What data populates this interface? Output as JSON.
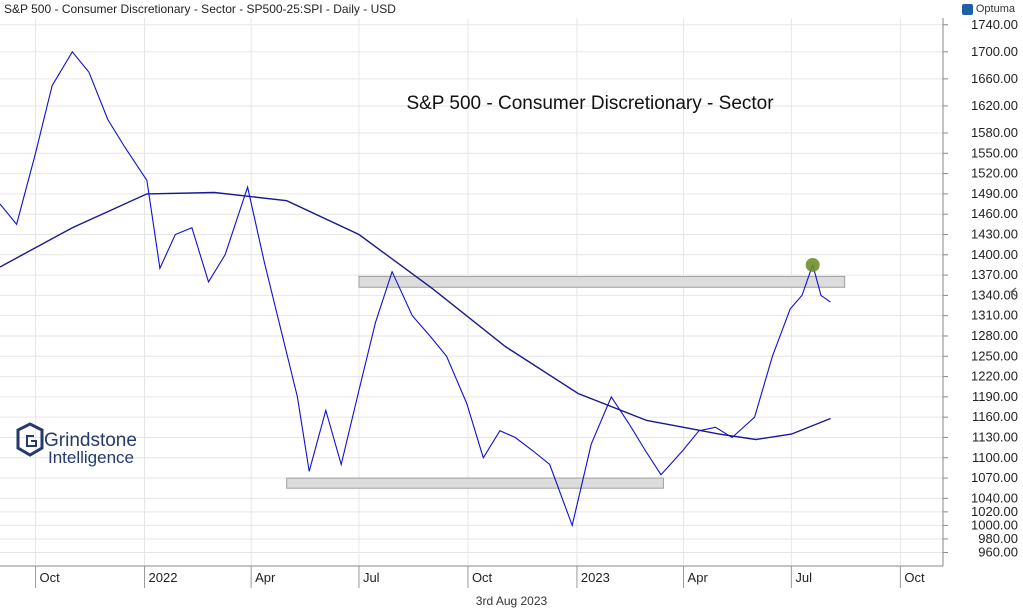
{
  "header": {
    "title": "S&P 500 - Consumer Discretionary - Sector - SP500-25:SPI - Daily - USD",
    "brand": "Optuma"
  },
  "footer": {
    "date": "3rd Aug 2023"
  },
  "watermark": {
    "line1": "Grindstone",
    "line2": "Intelligence"
  },
  "colors": {
    "price": "#1010d0",
    "ma": "#1a1a8c",
    "band_fill": "#dcdcdc",
    "band_stroke": "#a0a0a0",
    "marker": "#6f8f2a",
    "grid": "#e6e6e6"
  },
  "chart_data": {
    "type": "line",
    "title": "S&P 500 - Consumer Discretionary - Sector",
    "xlabel": "",
    "ylabel": "",
    "grid": true,
    "ylim": [
      940,
      1750
    ],
    "x_ticks": [
      "Oct",
      "2022",
      "Apr",
      "Jul",
      "Oct",
      "2023",
      "Apr",
      "Jul",
      "Oct"
    ],
    "y_ticks": [
      1740,
      1700,
      1660,
      1620,
      1580,
      1550,
      1520,
      1490,
      1460,
      1430,
      1400,
      1370,
      1340,
      1310,
      1280,
      1250,
      1220,
      1190,
      1160,
      1130,
      1100,
      1070,
      1040,
      1020,
      1000,
      980,
      960
    ],
    "x_domain": [
      "2021-09-01",
      "2023-11-06"
    ],
    "series": [
      {
        "type": "price",
        "x": [
          "2021-09-01",
          "2021-09-15",
          "2021-10-01",
          "2021-10-15",
          "2021-11-01",
          "2021-11-15",
          "2021-12-01",
          "2021-12-15",
          "2022-01-03",
          "2022-01-14",
          "2022-01-27",
          "2022-02-10",
          "2022-02-24",
          "2022-03-10",
          "2022-03-29",
          "2022-04-12",
          "2022-04-26",
          "2022-05-10",
          "2022-05-20",
          "2022-06-03",
          "2022-06-16",
          "2022-07-01",
          "2022-07-15",
          "2022-07-29",
          "2022-08-15",
          "2022-08-30",
          "2022-09-13",
          "2022-09-30",
          "2022-10-14",
          "2022-10-28",
          "2022-11-10",
          "2022-11-25",
          "2022-12-09",
          "2022-12-28",
          "2023-01-13",
          "2023-01-30",
          "2023-02-14",
          "2023-02-28",
          "2023-03-13",
          "2023-03-31",
          "2023-04-14",
          "2023-04-28",
          "2023-05-12",
          "2023-05-31",
          "2023-06-15",
          "2023-06-30",
          "2023-07-10",
          "2023-07-19",
          "2023-07-26",
          "2023-08-03"
        ],
        "y": [
          1475,
          1445,
          1550,
          1650,
          1700,
          1670,
          1600,
          1560,
          1510,
          1380,
          1430,
          1440,
          1360,
          1400,
          1500,
          1390,
          1290,
          1190,
          1080,
          1170,
          1090,
          1200,
          1300,
          1375,
          1310,
          1280,
          1250,
          1180,
          1100,
          1140,
          1130,
          1110,
          1090,
          1000,
          1120,
          1190,
          1150,
          1110,
          1075,
          1110,
          1140,
          1145,
          1130,
          1160,
          1250,
          1320,
          1340,
          1385,
          1340,
          1330
        ]
      },
      {
        "type": "moving_average",
        "x": [
          "2021-09-01",
          "2021-11-01",
          "2022-01-03",
          "2022-03-01",
          "2022-05-01",
          "2022-07-01",
          "2022-09-01",
          "2022-11-01",
          "2023-01-02",
          "2023-03-01",
          "2023-04-01",
          "2023-05-01",
          "2023-06-01",
          "2023-07-01",
          "2023-08-03"
        ],
        "y": [
          1382,
          1440,
          1490,
          1492,
          1480,
          1430,
          1350,
          1265,
          1195,
          1155,
          1145,
          1135,
          1127,
          1135,
          1158
        ]
      }
    ],
    "bands": [
      {
        "from_x": "2022-07-01",
        "to_x": "2023-08-15",
        "low": 1352,
        "high": 1368
      },
      {
        "from_x": "2022-05-01",
        "to_x": "2023-03-15",
        "low": 1055,
        "high": 1070
      }
    ],
    "marker": {
      "x": "2023-07-19",
      "y": 1385
    }
  }
}
